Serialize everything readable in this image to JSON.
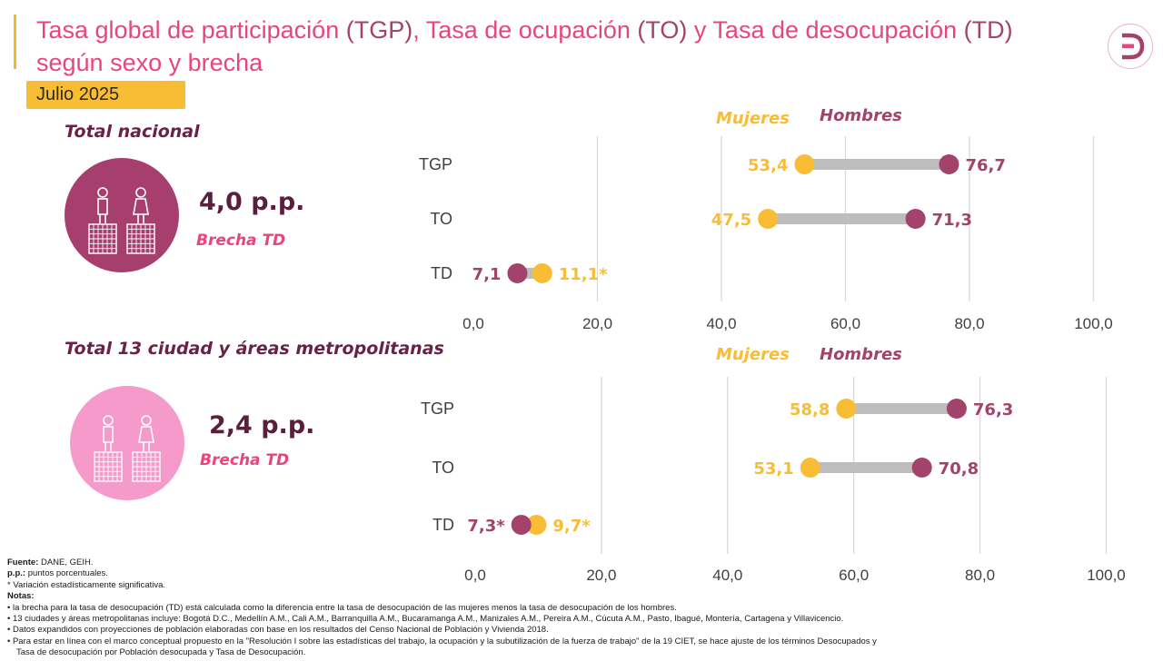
{
  "header": {
    "title_part1": "Tasa global de participación ",
    "title_part2": "(TGP)",
    "title_part3": ", Tasa de ocupación ",
    "title_part4": "(TO)",
    "title_part5": " y Tasa de desocupación ",
    "title_part6": "(TD)",
    "title_line2": "según sexo y brecha",
    "date": "Julio 2025"
  },
  "colors": {
    "mujeres": "#f8bd34",
    "hombres": "#a3426b",
    "connector": "#bdbdbd",
    "grid": "#d9d9d9",
    "brand_pink": "#e8457f"
  },
  "sections": [
    {
      "title": "Total nacional",
      "gap_value": "4,0 p.p.",
      "gap_label": "Brecha TD",
      "legend_mujeres": "Mujeres",
      "legend_hombres": "Hombres",
      "circle_color": "#a63e6e"
    },
    {
      "title": "Total 13 ciudad y áreas metropolitanas",
      "gap_value": "2,4 p.p.",
      "gap_label": "Brecha TD",
      "legend_mujeres": "Mujeres",
      "legend_hombres": "Hombres",
      "circle_color": "#f59acb"
    }
  ],
  "chart_data": [
    {
      "type": "dumbbell",
      "title": "Total nacional",
      "categories": [
        "TGP",
        "TO",
        "TD"
      ],
      "series": [
        {
          "name": "Mujeres",
          "values": [
            53.4,
            47.5,
            11.1
          ],
          "labels": [
            "53,4",
            "47,5",
            "11,1*"
          ]
        },
        {
          "name": "Hombres",
          "values": [
            76.7,
            71.3,
            7.1
          ],
          "labels": [
            "76,7",
            "71,3",
            "7,1"
          ]
        }
      ],
      "xlim": [
        0,
        100
      ],
      "xticks": [
        "0,0",
        "20,0",
        "40,0",
        "60,0",
        "80,0",
        "100,0"
      ],
      "grid": true
    },
    {
      "type": "dumbbell",
      "title": "Total 13 ciudad y áreas metropolitanas",
      "categories": [
        "TGP",
        "TO",
        "TD"
      ],
      "series": [
        {
          "name": "Mujeres",
          "values": [
            58.8,
            53.1,
            9.7
          ],
          "labels": [
            "58,8",
            "53,1",
            "9,7*"
          ]
        },
        {
          "name": "Hombres",
          "values": [
            76.3,
            70.8,
            7.3
          ],
          "labels": [
            "76,3",
            "70,8",
            "7,3*"
          ]
        }
      ],
      "xlim": [
        0,
        100
      ],
      "xticks": [
        "0,0",
        "20,0",
        "40,0",
        "60,0",
        "80,0",
        "100,0"
      ],
      "grid": true
    }
  ],
  "footer": {
    "fuente_label": "Fuente:",
    "fuente_text": " DANE, GEIH.",
    "pp_label": "p.p.:",
    "pp_text": " puntos porcentuales.",
    "asterisk_note": "* Variación estadísticamente significativa.",
    "notas_label": "Notas:",
    "notes": [
      "• la brecha para la tasa de desocupación (TD) está calculada como la diferencia entre la tasa de desocupación de las mujeres menos la tasa de desocupación de los hombres.",
      "• 13 ciudades y áreas metropolitanas incluye: Bogotá D.C., Medellín A.M., Cali A.M., Barranquilla A.M., Bucaramanga A.M., Manizales A.M., Pereira A.M., Cúcuta A.M., Pasto, Ibagué, Montería, Cartagena y Villavicencio.",
      "• Datos expandidos con proyecciones de población elaboradas con base en los resultados del Censo Nacional de Población y Vivienda 2018.",
      "• Para estar en línea con el marco conceptual propuesto en la \"Resolución I sobre las estadísticas del trabajo, la ocupación y la subutilización de la fuerza de trabajo\" de la 19 CIET, se hace ajuste de los términos Desocupados y",
      "Tasa de desocupación por Población desocupada y Tasa de Desocupación."
    ]
  }
}
